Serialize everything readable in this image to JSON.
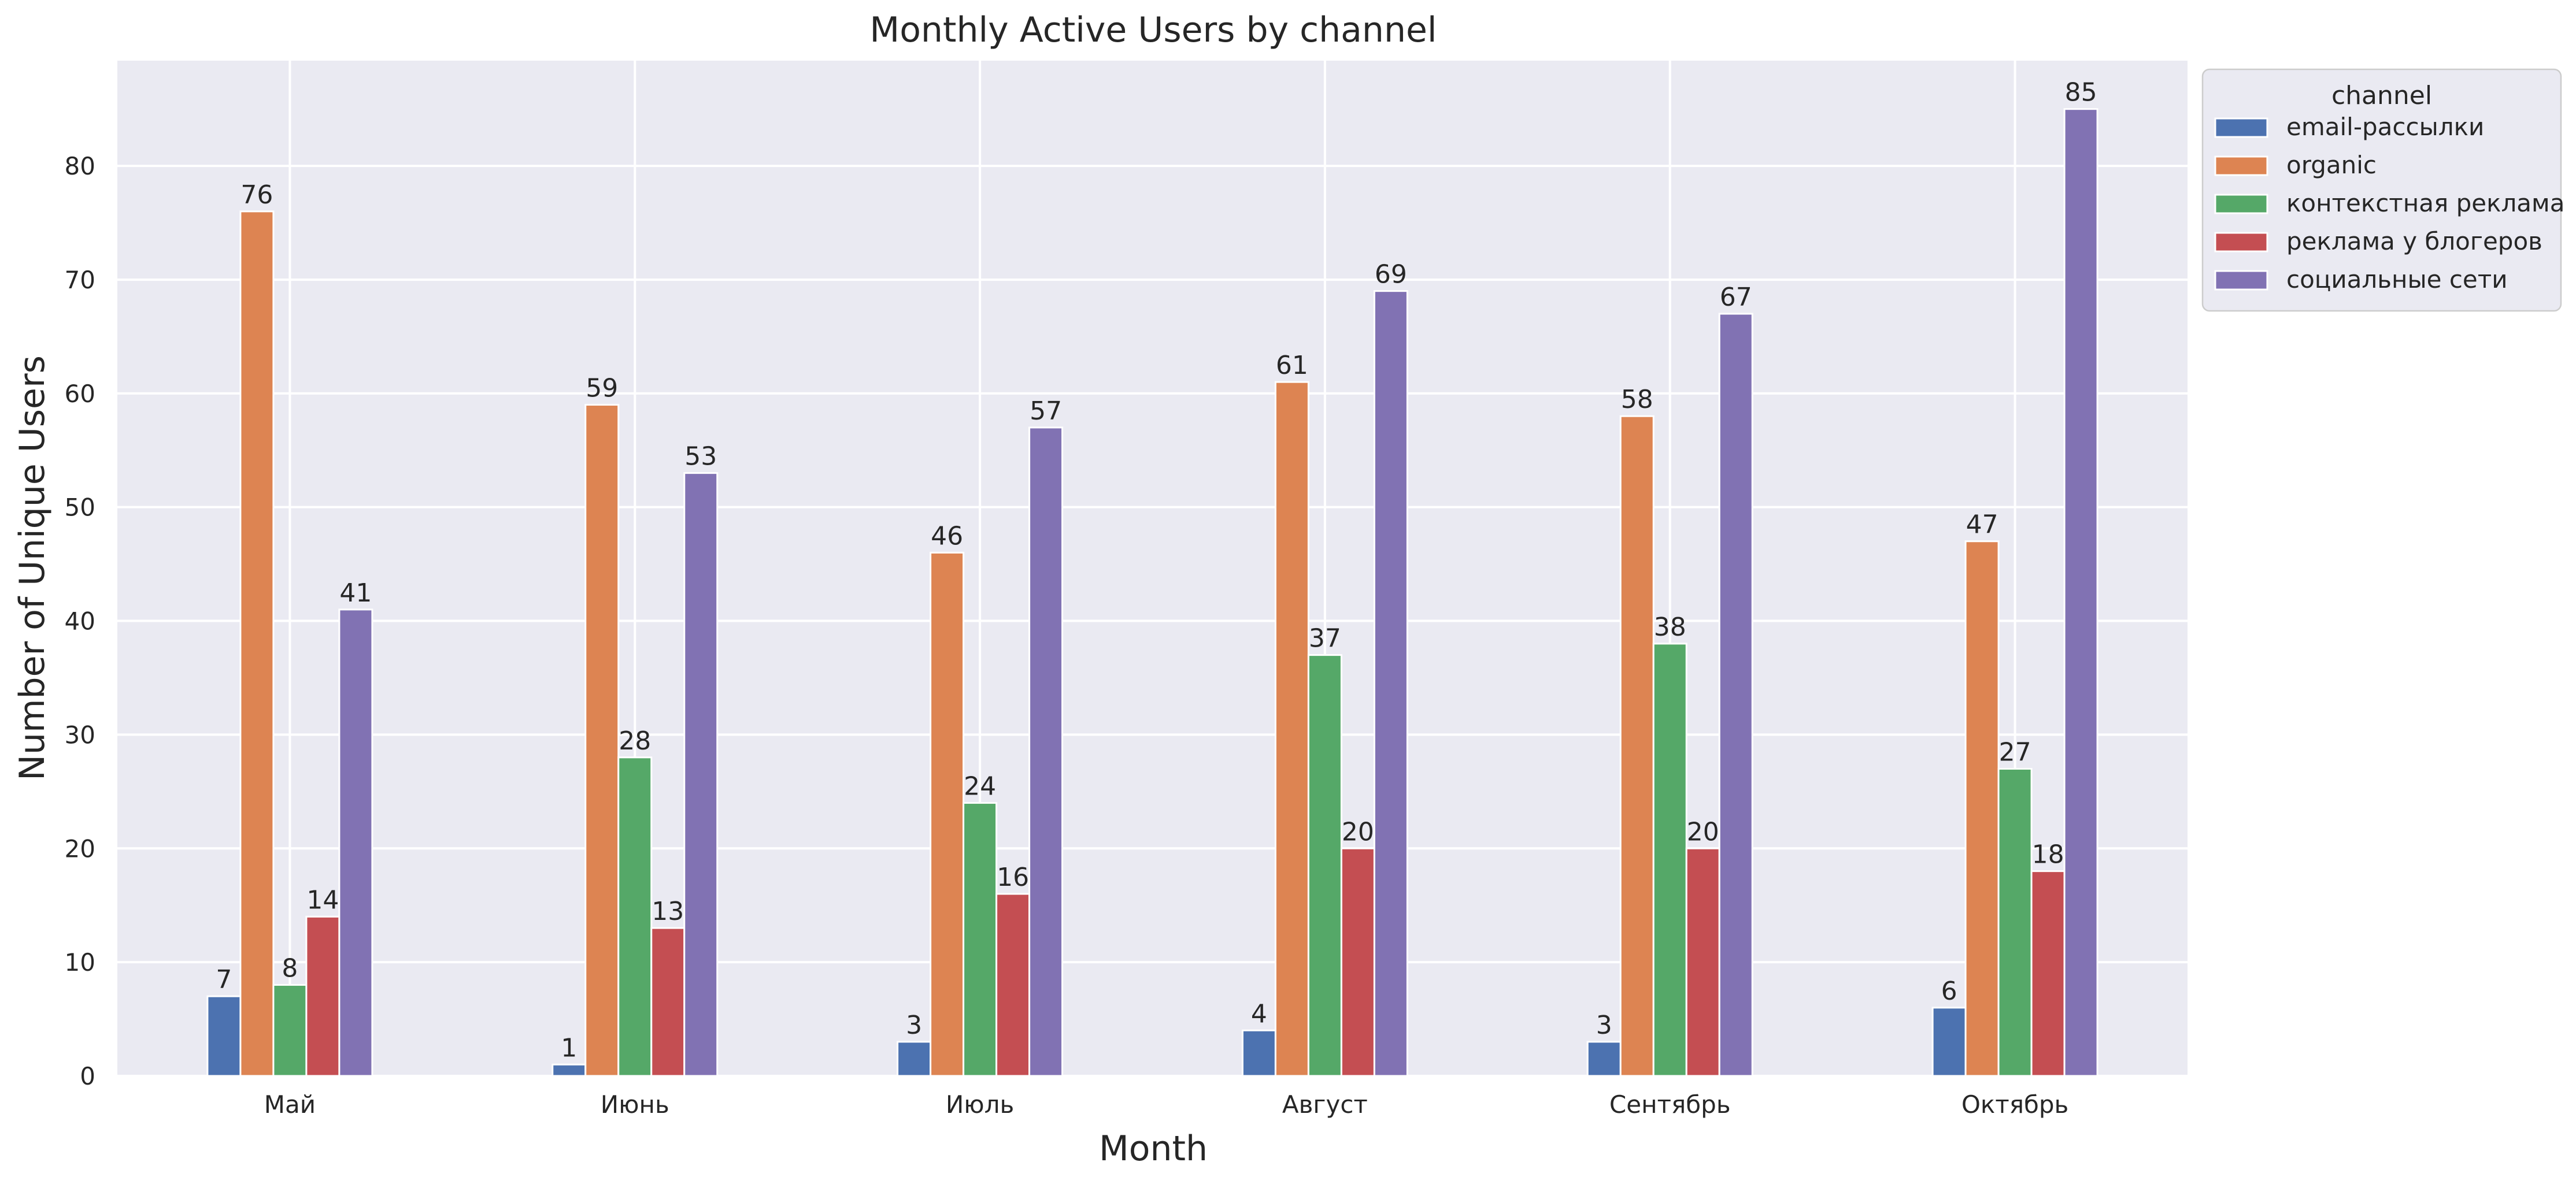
{
  "chart_data": {
    "type": "bar",
    "title": "Monthly Active Users by channel",
    "xlabel": "Month",
    "ylabel": "Number of Unique Users",
    "categories": [
      "Май",
      "Июнь",
      "Июль",
      "Август",
      "Сентябрь",
      "Октябрь"
    ],
    "ylim": [
      0,
      89.25
    ],
    "yticks": [
      0,
      10,
      20,
      30,
      40,
      50,
      60,
      70,
      80
    ],
    "grid": true,
    "legend": {
      "title": "channel",
      "placement": "outside top-right"
    },
    "series": [
      {
        "name": "email-рассылки",
        "color": "#4c72b0",
        "values": [
          7,
          1,
          3,
          4,
          3,
          6
        ]
      },
      {
        "name": "organic",
        "color": "#dd8452",
        "values": [
          76,
          59,
          46,
          61,
          58,
          47
        ]
      },
      {
        "name": "контекстная реклама",
        "color": "#55a868",
        "values": [
          8,
          28,
          24,
          37,
          38,
          27
        ]
      },
      {
        "name": "реклама у блогеров",
        "color": "#c44e52",
        "values": [
          14,
          13,
          16,
          20,
          20,
          18
        ]
      },
      {
        "name": "социальные сети",
        "color": "#8172b3",
        "values": [
          41,
          53,
          57,
          69,
          67,
          85
        ]
      }
    ],
    "plot_background": "#eaeaf2",
    "grid_color": "#ffffff"
  }
}
